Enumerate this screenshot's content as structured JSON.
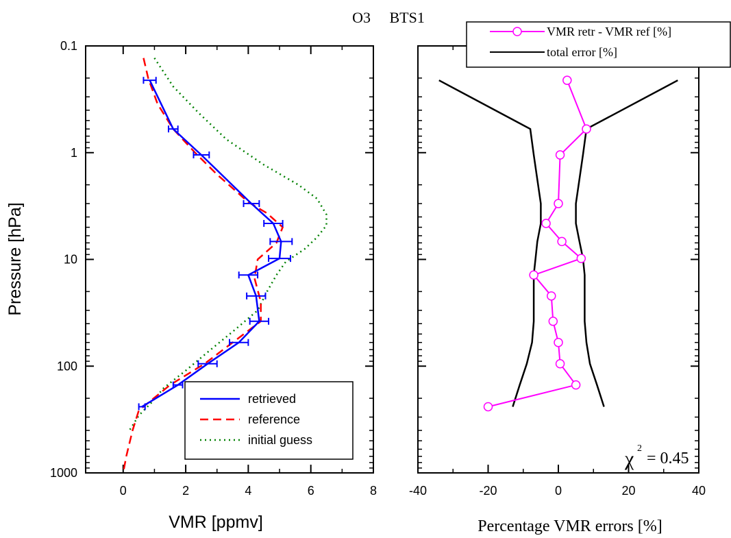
{
  "title": "O3     BTS1",
  "colors": {
    "retrieved": "#0000ff",
    "reference": "#ff0000",
    "initial_guess": "#008000",
    "difference": "#ff00ff",
    "total_error": "#000000"
  },
  "chart_data": [
    {
      "type": "line",
      "y_scale": "log",
      "ylabel": "Pressure [hPa]",
      "xlabel": "VMR [ppmv]",
      "xlim": [
        -1.2,
        8
      ],
      "ylim": [
        1000,
        0.1
      ],
      "xticks": [
        0,
        2,
        4,
        6,
        8
      ],
      "xtick_labels": [
        "0",
        "2",
        "4",
        "6",
        "8"
      ],
      "yticks": [
        0.1,
        1,
        10,
        100,
        1000
      ],
      "ytick_labels": [
        "0.1",
        "1",
        "10",
        "100",
        "1000"
      ],
      "legend_position": "bottom-right",
      "series": [
        {
          "name": "retrieved",
          "style": "solid",
          "points": [
            [
              0.85,
              0.21
            ],
            [
              1.6,
              0.6
            ],
            [
              2.5,
              1.05
            ],
            [
              4.1,
              3.0
            ],
            [
              4.8,
              4.6
            ],
            [
              5.05,
              6.8
            ],
            [
              5.0,
              9.8
            ],
            [
              4.0,
              14.0
            ],
            [
              4.25,
              22.0
            ],
            [
              4.35,
              38.0
            ],
            [
              3.7,
              60.0
            ],
            [
              2.7,
              95.0
            ],
            [
              1.75,
              150.0
            ],
            [
              0.6,
              240.0
            ]
          ],
          "error": [
            0.2,
            0.15,
            0.25,
            0.25,
            0.3,
            0.35,
            0.35,
            0.3,
            0.3,
            0.3,
            0.3,
            0.3,
            0.15,
            0.1
          ]
        },
        {
          "name": "reference",
          "style": "dashed",
          "points": [
            [
              0.65,
              0.13
            ],
            [
              0.8,
              0.2
            ],
            [
              1.1,
              0.35
            ],
            [
              1.6,
              0.6
            ],
            [
              2.3,
              1.0
            ],
            [
              3.0,
              1.6
            ],
            [
              4.0,
              2.9
            ],
            [
              4.6,
              3.7
            ],
            [
              5.1,
              5.0
            ],
            [
              4.9,
              7.0
            ],
            [
              4.3,
              10.0
            ],
            [
              4.2,
              15.0
            ],
            [
              4.4,
              25.0
            ],
            [
              4.4,
              38.0
            ],
            [
              3.5,
              60.0
            ],
            [
              2.6,
              95.0
            ],
            [
              1.5,
              150.0
            ],
            [
              0.5,
              260.0
            ],
            [
              0.3,
              400.0
            ],
            [
              0.1,
              700.0
            ],
            [
              0.0,
              1000.0
            ]
          ]
        },
        {
          "name": "initial guess",
          "style": "dotted",
          "points": [
            [
              1.0,
              0.13
            ],
            [
              1.6,
              0.24
            ],
            [
              2.4,
              0.42
            ],
            [
              3.3,
              0.75
            ],
            [
              4.5,
              1.3
            ],
            [
              5.6,
              2.0
            ],
            [
              6.2,
              2.7
            ],
            [
              6.5,
              3.8
            ],
            [
              6.5,
              4.8
            ],
            [
              6.2,
              6.2
            ],
            [
              5.8,
              8.0
            ],
            [
              5.2,
              10.5
            ],
            [
              4.9,
              14.0
            ],
            [
              4.6,
              20.0
            ],
            [
              4.3,
              30.0
            ],
            [
              3.6,
              45.0
            ],
            [
              2.8,
              70.0
            ],
            [
              2.0,
              110.0
            ],
            [
              1.3,
              160.0
            ],
            [
              0.9,
              220.0
            ],
            [
              0.5,
              290.0
            ],
            [
              0.2,
              400.0
            ]
          ]
        }
      ]
    },
    {
      "type": "line",
      "y_scale": "log",
      "xlabel": "Percentage VMR errors [%]",
      "xlim": [
        -40,
        40
      ],
      "ylim": [
        1000,
        0.1
      ],
      "xticks": [
        -40,
        -20,
        0,
        20,
        40
      ],
      "xtick_labels": [
        "-40",
        "-20",
        "0",
        "20",
        "40"
      ],
      "legend_position": "top-right",
      "annotation": "χ² = 0.45",
      "annotation_parts": {
        "symbol": "χ",
        "exponent": "2",
        "text": "= 0.45"
      },
      "series": [
        {
          "name": "VMR retr - VMR ref [%]",
          "style": "solid-circles",
          "points": [
            [
              2.5,
              0.21
            ],
            [
              8.0,
              0.6
            ],
            [
              0.5,
              1.05
            ],
            [
              0.0,
              3.0
            ],
            [
              -3.5,
              4.6
            ],
            [
              1.0,
              6.8
            ],
            [
              6.5,
              9.8
            ],
            [
              -7.0,
              14.0
            ],
            [
              -2.0,
              22.0
            ],
            [
              -1.5,
              38.0
            ],
            [
              0.0,
              60.0
            ],
            [
              0.5,
              95.0
            ],
            [
              5.0,
              150.0
            ],
            [
              -20.0,
              240.0
            ]
          ]
        },
        {
          "name": "total error [%]",
          "style": "solid",
          "branches": [
            [
              [
                -34.0,
                0.21
              ],
              [
                -8.0,
                0.6
              ],
              [
                -7.0,
                1.05
              ],
              [
                -5.0,
                3.0
              ],
              [
                -5.0,
                4.6
              ],
              [
                -6.0,
                6.8
              ],
              [
                -6.5,
                9.8
              ],
              [
                -7.0,
                14.0
              ],
              [
                -7.0,
                22.0
              ],
              [
                -7.0,
                38.0
              ],
              [
                -7.5,
                60.0
              ],
              [
                -9.0,
                95.0
              ],
              [
                -11.0,
                150.0
              ],
              [
                -13.0,
                240.0
              ]
            ],
            [
              [
                34.0,
                0.21
              ],
              [
                8.0,
                0.6
              ],
              [
                7.0,
                1.05
              ],
              [
                5.0,
                3.0
              ],
              [
                5.0,
                4.6
              ],
              [
                6.0,
                6.8
              ],
              [
                7.0,
                9.8
              ],
              [
                7.5,
                14.0
              ],
              [
                7.5,
                22.0
              ],
              [
                7.5,
                38.0
              ],
              [
                8.0,
                60.0
              ],
              [
                9.0,
                95.0
              ],
              [
                11.0,
                150.0
              ],
              [
                13.0,
                240.0
              ]
            ]
          ]
        }
      ]
    }
  ]
}
